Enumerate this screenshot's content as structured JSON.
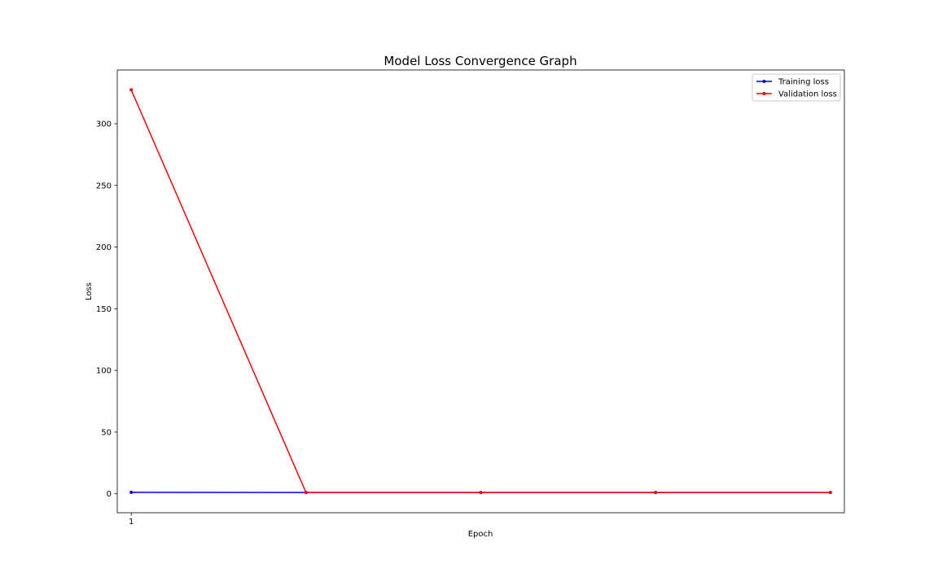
{
  "chart_data": {
    "type": "line",
    "title": "Model Loss Convergence Graph",
    "xlabel": "Epoch",
    "ylabel": "Loss",
    "x": [
      1,
      2,
      3,
      4,
      5
    ],
    "x_tick_labels": [
      {
        "x": 1,
        "label": "1"
      }
    ],
    "y_ticks": [
      0,
      50,
      100,
      150,
      200,
      250,
      300
    ],
    "ylim": [
      -15.4,
      343.6
    ],
    "xlim": [
      0.92,
      5.08
    ],
    "grid": false,
    "legend_position": "top-right",
    "series": [
      {
        "name": "Training loss",
        "color": "#0000ff",
        "marker": "circle",
        "values": [
          1.2,
          1.0,
          1.0,
          1.0,
          1.0
        ]
      },
      {
        "name": "Validation loss",
        "color": "#ff0000",
        "marker": "circle",
        "values": [
          327.5,
          1.0,
          1.0,
          1.0,
          1.0
        ]
      }
    ]
  }
}
